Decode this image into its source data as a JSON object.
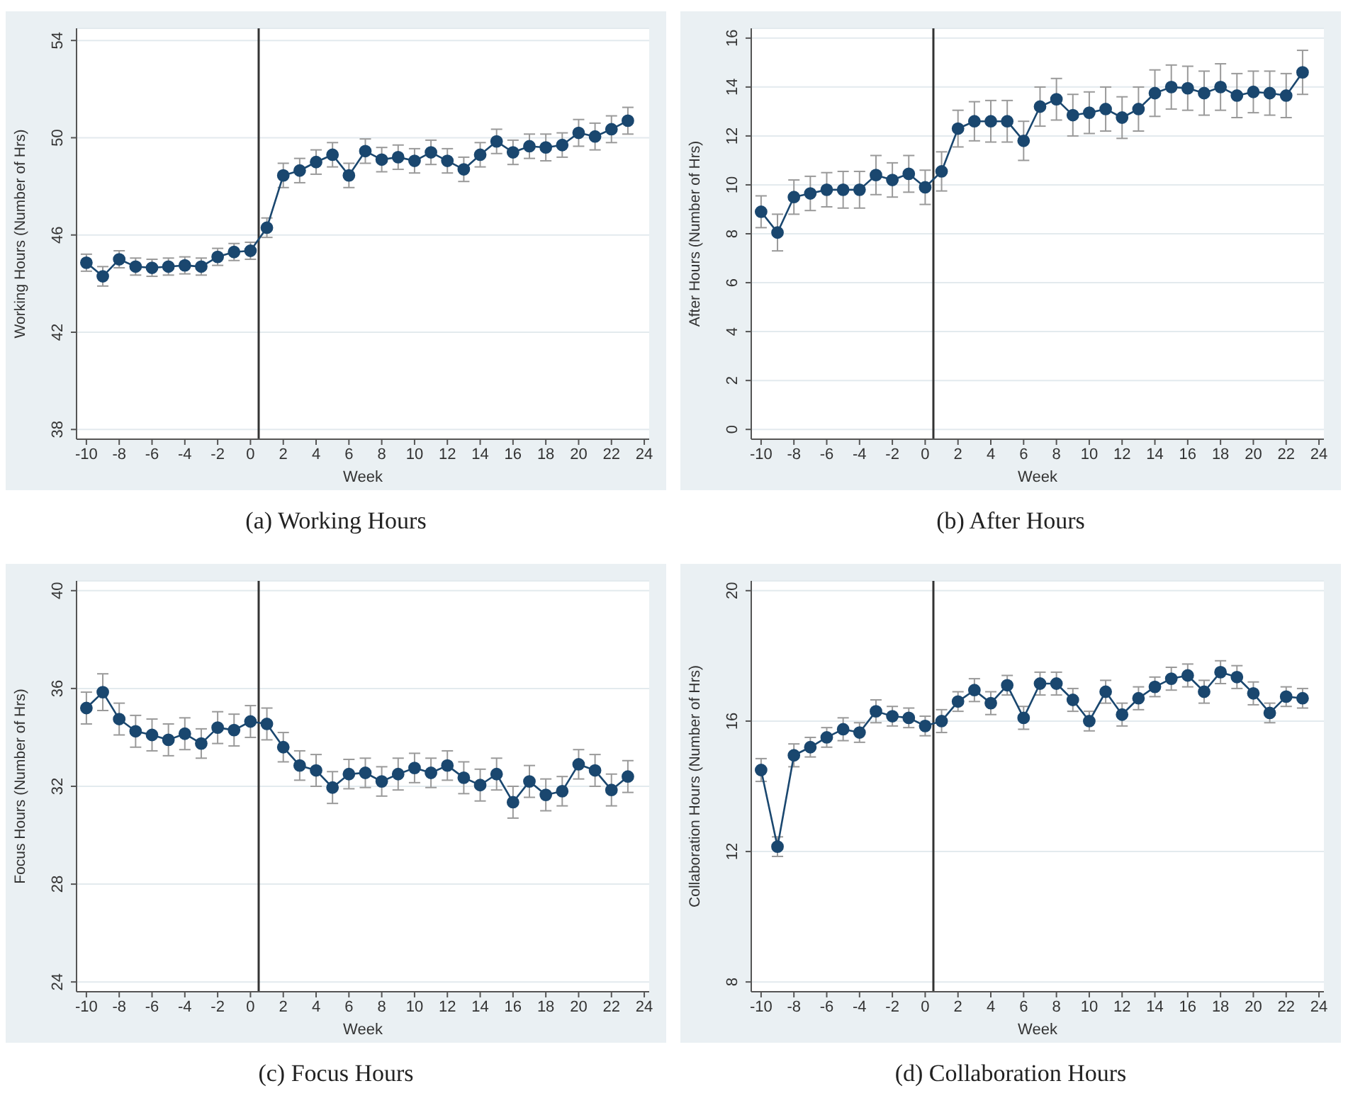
{
  "chart_data": [
    {
      "type": "line",
      "title": "(a)  Working Hours",
      "xlabel": "Week",
      "ylabel": "Working Hours (Number of Hrs)",
      "grid": "y",
      "marker": "circle",
      "xlim": [
        -10.6,
        24.3
      ],
      "xticks": [
        -10,
        -8,
        -6,
        -4,
        -2,
        0,
        2,
        4,
        6,
        8,
        10,
        12,
        14,
        16,
        18,
        20,
        22,
        24
      ],
      "ylim": [
        37.6,
        54.5
      ],
      "yticks": [
        38,
        42,
        46,
        50,
        54
      ],
      "ref_lines": [
        {
          "axis": "x",
          "value": 0.5,
          "color": "#333333"
        }
      ],
      "x": [
        -10,
        -9,
        -8,
        -7,
        -6,
        -5,
        -4,
        -3,
        -2,
        -1,
        0,
        1,
        2,
        3,
        4,
        5,
        6,
        7,
        8,
        9,
        10,
        11,
        12,
        13,
        14,
        15,
        16,
        17,
        18,
        19,
        20,
        21,
        22,
        23
      ],
      "series": [
        {
          "color": "#1a476f",
          "values": [
            44.86,
            44.3,
            45.0,
            44.7,
            44.65,
            44.7,
            44.75,
            44.7,
            45.1,
            45.3,
            45.35,
            46.3,
            48.45,
            48.65,
            49.0,
            49.3,
            48.45,
            49.45,
            49.1,
            49.2,
            49.05,
            49.4,
            49.05,
            48.7,
            49.3,
            49.85,
            49.4,
            49.65,
            49.6,
            49.7,
            50.2,
            50.05,
            50.35,
            50.7
          ],
          "errors": [
            0.35,
            0.4,
            0.35,
            0.35,
            0.35,
            0.35,
            0.35,
            0.35,
            0.35,
            0.35,
            0.35,
            0.4,
            0.5,
            0.5,
            0.5,
            0.5,
            0.5,
            0.5,
            0.5,
            0.5,
            0.5,
            0.5,
            0.5,
            0.5,
            0.5,
            0.5,
            0.5,
            0.5,
            0.55,
            0.5,
            0.55,
            0.55,
            0.55,
            0.55
          ]
        }
      ]
    },
    {
      "type": "line",
      "title": "(b)  After Hours",
      "xlabel": "Week",
      "ylabel": "After Hours (Number of Hrs)",
      "grid": "y",
      "marker": "circle",
      "xlim": [
        -10.6,
        24.3
      ],
      "xticks": [
        -10,
        -8,
        -6,
        -4,
        -2,
        0,
        2,
        4,
        6,
        8,
        10,
        12,
        14,
        16,
        18,
        20,
        22,
        24
      ],
      "ylim": [
        -0.4,
        16.4
      ],
      "yticks": [
        0,
        2,
        4,
        6,
        8,
        10,
        12,
        14,
        16
      ],
      "ref_lines": [
        {
          "axis": "x",
          "value": 0.5,
          "color": "#333333"
        }
      ],
      "x": [
        -10,
        -9,
        -8,
        -7,
        -6,
        -5,
        -4,
        -3,
        -2,
        -1,
        0,
        1,
        2,
        3,
        4,
        5,
        6,
        7,
        8,
        9,
        10,
        11,
        12,
        13,
        14,
        15,
        16,
        17,
        18,
        19,
        20,
        21,
        22,
        23
      ],
      "series": [
        {
          "color": "#1a476f",
          "values": [
            8.9,
            8.05,
            9.5,
            9.65,
            9.8,
            9.8,
            9.8,
            10.4,
            10.2,
            10.45,
            9.9,
            10.55,
            12.3,
            12.6,
            12.6,
            12.6,
            11.8,
            13.2,
            13.5,
            12.85,
            12.95,
            13.1,
            12.75,
            13.1,
            13.75,
            14.0,
            13.95,
            13.75,
            14.0,
            13.65,
            13.8,
            13.75,
            13.65,
            14.6
          ],
          "errors": [
            0.65,
            0.75,
            0.7,
            0.7,
            0.7,
            0.75,
            0.75,
            0.8,
            0.7,
            0.75,
            0.7,
            0.8,
            0.75,
            0.8,
            0.85,
            0.85,
            0.8,
            0.8,
            0.85,
            0.85,
            0.85,
            0.9,
            0.85,
            0.9,
            0.95,
            0.9,
            0.9,
            0.9,
            0.95,
            0.9,
            0.85,
            0.9,
            0.9,
            0.9
          ]
        }
      ]
    },
    {
      "type": "line",
      "title": "(c)  Focus Hours",
      "xlabel": "Week",
      "ylabel": "Focus Hours (Number of Hrs)",
      "grid": "y",
      "marker": "circle",
      "xlim": [
        -10.6,
        24.3
      ],
      "xticks": [
        -10,
        -8,
        -6,
        -4,
        -2,
        0,
        2,
        4,
        6,
        8,
        10,
        12,
        14,
        16,
        18,
        20,
        22,
        24
      ],
      "ylim": [
        23.6,
        40.4
      ],
      "yticks": [
        24,
        28,
        32,
        36,
        40
      ],
      "ref_lines": [
        {
          "axis": "x",
          "value": 0.5,
          "color": "#333333"
        }
      ],
      "x": [
        -10,
        -9,
        -8,
        -7,
        -6,
        -5,
        -4,
        -3,
        -2,
        -1,
        0,
        1,
        2,
        3,
        4,
        5,
        6,
        7,
        8,
        9,
        10,
        11,
        12,
        13,
        14,
        15,
        16,
        17,
        18,
        19,
        20,
        21,
        22,
        23
      ],
      "series": [
        {
          "color": "#1a476f",
          "values": [
            35.2,
            35.85,
            34.75,
            34.25,
            34.1,
            33.9,
            34.15,
            33.75,
            34.4,
            34.3,
            34.65,
            34.55,
            33.6,
            32.85,
            32.65,
            31.95,
            32.5,
            32.55,
            32.2,
            32.5,
            32.75,
            32.55,
            32.85,
            32.35,
            32.05,
            32.5,
            31.35,
            32.2,
            31.65,
            31.8,
            32.9,
            32.65,
            31.85,
            32.4
          ],
          "errors": [
            0.65,
            0.75,
            0.65,
            0.65,
            0.65,
            0.65,
            0.65,
            0.6,
            0.65,
            0.65,
            0.65,
            0.65,
            0.6,
            0.6,
            0.65,
            0.65,
            0.6,
            0.6,
            0.6,
            0.65,
            0.6,
            0.6,
            0.6,
            0.65,
            0.65,
            0.65,
            0.65,
            0.65,
            0.65,
            0.6,
            0.6,
            0.65,
            0.65,
            0.65
          ]
        }
      ]
    },
    {
      "type": "line",
      "title": "(d)  Collaboration Hours",
      "xlabel": "Week",
      "ylabel": "Collaboration Hours (Number of Hrs)",
      "grid": "y",
      "marker": "circle",
      "xlim": [
        -10.6,
        24.3
      ],
      "xticks": [
        -10,
        -8,
        -6,
        -4,
        -2,
        0,
        2,
        4,
        6,
        8,
        10,
        12,
        14,
        16,
        18,
        20,
        22,
        24
      ],
      "ylim": [
        7.7,
        20.3
      ],
      "yticks": [
        8,
        12,
        16,
        20
      ],
      "ref_lines": [
        {
          "axis": "x",
          "value": 0.5,
          "color": "#333333"
        }
      ],
      "x": [
        -10,
        -9,
        -8,
        -7,
        -6,
        -5,
        -4,
        -3,
        -2,
        -1,
        0,
        1,
        2,
        3,
        4,
        5,
        6,
        7,
        8,
        9,
        10,
        11,
        12,
        13,
        14,
        15,
        16,
        17,
        18,
        19,
        20,
        21,
        22,
        23
      ],
      "series": [
        {
          "color": "#1a476f",
          "values": [
            14.5,
            12.15,
            14.95,
            15.2,
            15.5,
            15.75,
            15.65,
            16.3,
            16.15,
            16.1,
            15.85,
            16.0,
            16.6,
            16.95,
            16.55,
            17.1,
            16.1,
            17.15,
            17.15,
            16.65,
            16.0,
            16.9,
            16.2,
            16.7,
            17.05,
            17.3,
            17.4,
            16.9,
            17.5,
            17.35,
            16.85,
            16.25,
            16.75,
            16.7
          ],
          "errors": [
            0.35,
            0.3,
            0.35,
            0.3,
            0.3,
            0.35,
            0.3,
            0.35,
            0.3,
            0.3,
            0.3,
            0.35,
            0.3,
            0.35,
            0.35,
            0.3,
            0.35,
            0.35,
            0.35,
            0.35,
            0.3,
            0.35,
            0.35,
            0.35,
            0.3,
            0.35,
            0.35,
            0.35,
            0.35,
            0.35,
            0.35,
            0.3,
            0.3,
            0.3
          ]
        }
      ]
    }
  ]
}
